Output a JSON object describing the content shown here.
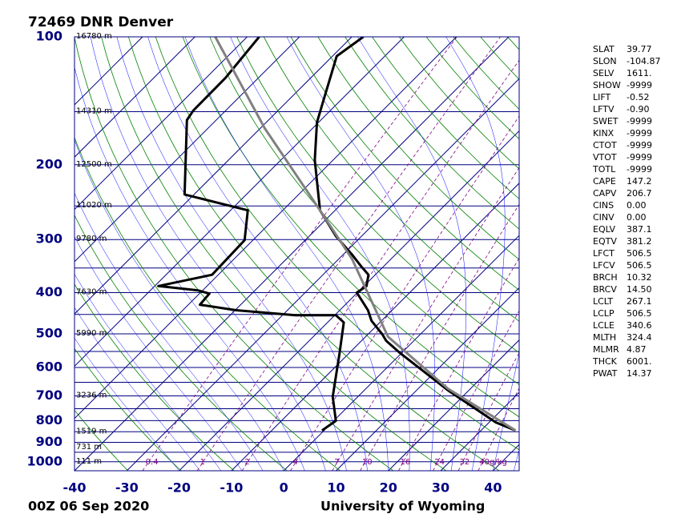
{
  "chart_data": {
    "type": "skewt",
    "title": "72469 DNR Denver",
    "date": "00Z 06 Sep 2020",
    "source": "University of Wyoming",
    "xlim": [
      -40,
      45
    ],
    "xticks": [
      -40,
      -30,
      -20,
      -10,
      0,
      10,
      20,
      30,
      40
    ],
    "ylim": [
      1050,
      100
    ],
    "yticks": [
      100,
      200,
      300,
      400,
      500,
      600,
      700,
      800,
      900,
      1000
    ],
    "log_y": true,
    "isobars": [
      100,
      150,
      200,
      250,
      300,
      350,
      400,
      450,
      500,
      550,
      600,
      650,
      700,
      750,
      800,
      850,
      900,
      950,
      1000,
      1050
    ],
    "isotherms": [
      -110,
      -100,
      -90,
      -80,
      -70,
      -60,
      -50,
      -40,
      -30,
      -20,
      -10,
      0,
      10,
      20,
      30,
      40
    ],
    "heights": [
      {
        "pressure": 100,
        "label": "16780 m"
      },
      {
        "pressure": 150,
        "label": "14310 m"
      },
      {
        "pressure": 200,
        "label": "12500 m"
      },
      {
        "pressure": 250,
        "label": "11020 m"
      },
      {
        "pressure": 300,
        "label": "9780 m"
      },
      {
        "pressure": 400,
        "label": "7630 m"
      },
      {
        "pressure": 500,
        "label": "5990 m"
      },
      {
        "pressure": 700,
        "label": "3236 m"
      },
      {
        "pressure": 850,
        "label": "1519 m"
      },
      {
        "pressure": 925,
        "label": "731 m"
      },
      {
        "pressure": 1000,
        "label": "111 m"
      }
    ],
    "mixing_ratios": [
      0.4,
      1,
      2,
      4,
      7,
      10,
      16,
      24,
      32,
      {
        "value": 40,
        "label": "40g/kg"
      }
    ],
    "series": [
      {
        "color": "#000000",
        "pressure": [
          844,
          808,
          679,
          554,
          519,
          501,
          466,
          440,
          400,
          386,
          363,
          348,
          326,
          295,
          256,
          195,
          159,
          142,
          111,
          100
        ],
        "values": [
          36.6,
          31.3,
          16.0,
          -0.4,
          -5.3,
          -7.3,
          -11.9,
          -14.6,
          -20.1,
          -19.5,
          -21.3,
          -24.1,
          -28.2,
          -34.8,
          -42.9,
          -53.5,
          -60.3,
          -63.1,
          -69.2,
          -67.8
        ]
      },
      {
        "color": "#000000",
        "pressure": [
          844,
          801,
          703,
          554,
          470,
          452,
          452,
          440,
          427,
          402,
          395,
          386,
          363,
          301,
          256,
          235,
          157,
          149,
          125,
          100
        ],
        "values": [
          -0.4,
          0.4,
          -4.8,
          -11.9,
          -16.9,
          -19.8,
          -27.5,
          -39.8,
          -47.8,
          -48.1,
          -51.0,
          -59.3,
          -51.2,
          -51.6,
          -56.7,
          -71.8,
          -85.6,
          -86.2,
          -86.3,
          -87.7
        ]
      },
      {
        "color": "#808080",
        "pressure": [
          844,
          673,
          508,
          409,
          333,
          256,
          164,
          100
        ],
        "values": [
          36.6,
          15.7,
          -5.7,
          -16.9,
          -27.5,
          -42.9,
          -69.2,
          -96.1
        ]
      }
    ],
    "indices": [
      [
        "SLAT",
        "39.77"
      ],
      [
        "SLON",
        "-104.87"
      ],
      [
        "SELV",
        "1611."
      ],
      [
        "SHOW",
        "-9999"
      ],
      [
        "LIFT",
        "-0.52"
      ],
      [
        "LFTV",
        "-0.90"
      ],
      [
        "SWET",
        "-9999"
      ],
      [
        "KINX",
        "-9999"
      ],
      [
        "CTOT",
        "-9999"
      ],
      [
        "VTOT",
        "-9999"
      ],
      [
        "TOTL",
        "-9999"
      ],
      [
        "CAPE",
        "147.2"
      ],
      [
        "CAPV",
        "206.7"
      ],
      [
        "CINS",
        "0.00"
      ],
      [
        "CINV",
        "0.00"
      ],
      [
        "EQLV",
        "387.1"
      ],
      [
        "EQTV",
        "381.2"
      ],
      [
        "LFCT",
        "506.5"
      ],
      [
        "LFCV",
        "506.5"
      ],
      [
        "BRCH",
        "10.32"
      ],
      [
        "BRCV",
        "14.50"
      ],
      [
        "LCLT",
        "267.1"
      ],
      [
        "LCLP",
        "506.5"
      ],
      [
        "LCLE",
        "340.6"
      ],
      [
        "MLTH",
        "324.4"
      ],
      [
        "MLMR",
        "4.87"
      ],
      [
        "THCK",
        "6001."
      ],
      [
        "PWAT",
        "14.37"
      ]
    ]
  }
}
